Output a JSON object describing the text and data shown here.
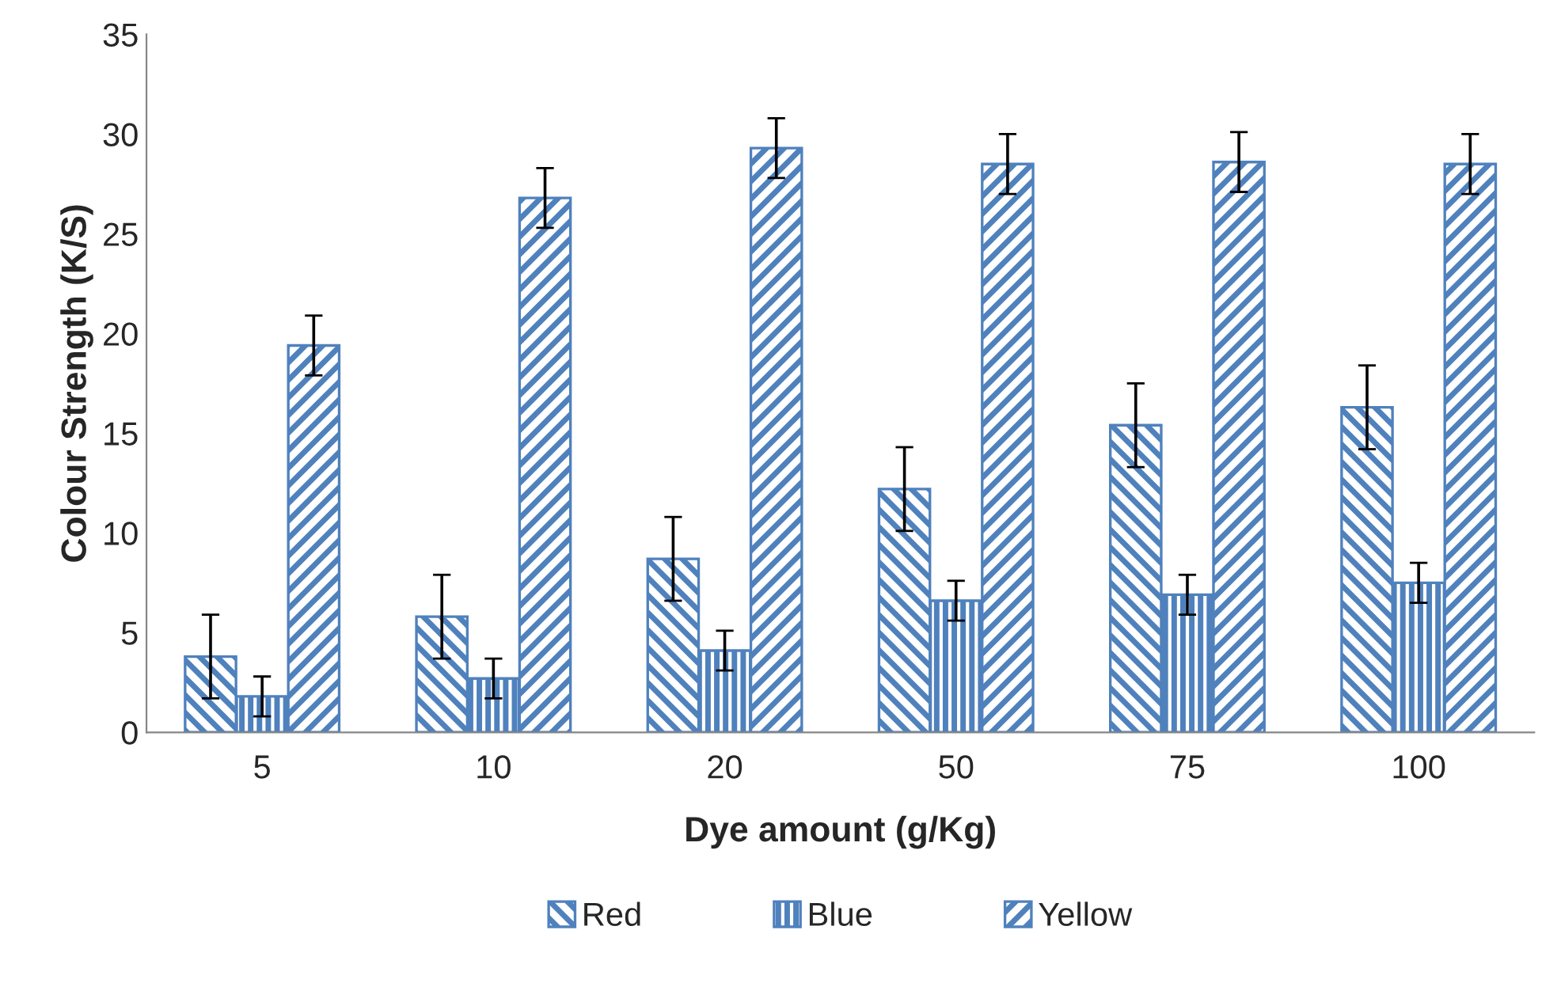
{
  "chart_data": {
    "type": "bar",
    "xlabel": "Dye amount (g/Kg)",
    "ylabel": "Colour Strength (K/S)",
    "categories": [
      "5",
      "10",
      "20",
      "50",
      "75",
      "100"
    ],
    "series": [
      {
        "name": "Red",
        "color": "#4f81bd",
        "values": [
          3.8,
          5.8,
          8.7,
          12.2,
          15.4,
          16.3
        ],
        "errors": [
          2.1,
          2.1,
          2.1,
          2.1,
          2.1,
          2.1
        ]
      },
      {
        "name": "Blue",
        "color": "#4f81bd",
        "values": [
          1.8,
          2.7,
          4.1,
          6.6,
          6.9,
          7.5
        ],
        "errors": [
          1.0,
          1.0,
          1.0,
          1.0,
          1.0,
          1.0
        ]
      },
      {
        "name": "Yellow",
        "color": "#4f81bd",
        "values": [
          19.4,
          26.8,
          29.3,
          28.5,
          28.6,
          28.5
        ],
        "errors": [
          1.5,
          1.5,
          1.5,
          1.5,
          1.5,
          1.5
        ]
      }
    ],
    "ylim": [
      0,
      35
    ],
    "yticks": [
      0,
      5,
      10,
      15,
      20,
      25,
      30,
      35
    ],
    "grid": false,
    "legend": "bottom"
  }
}
